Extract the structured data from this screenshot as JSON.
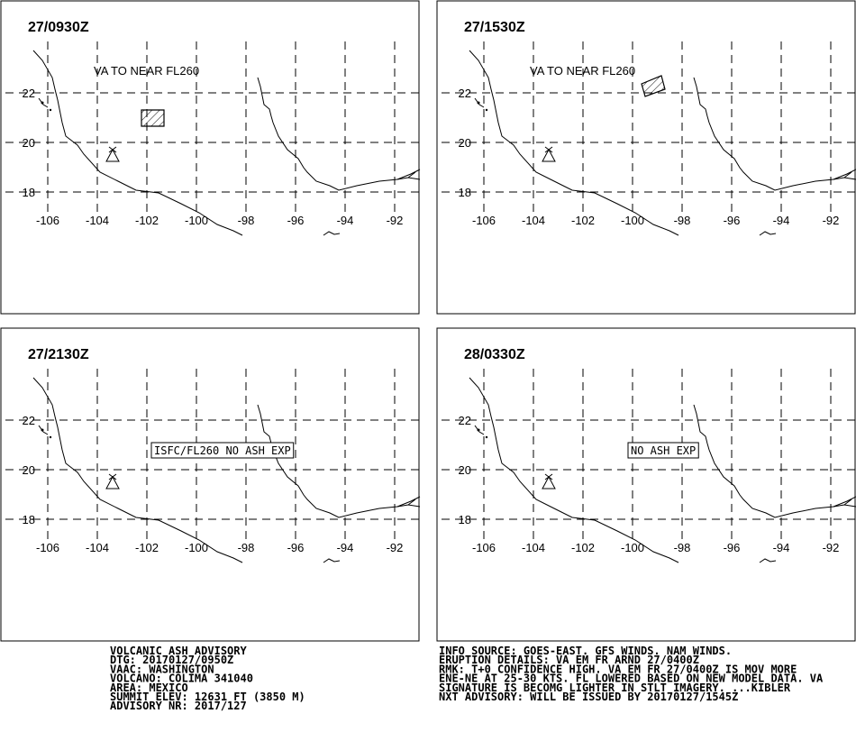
{
  "panels": [
    {
      "time": "27/0930Z",
      "label": "VA TO NEAR FL260"
    },
    {
      "time": "27/1530Z",
      "label": "VA TO NEAR FL260"
    },
    {
      "time": "27/2130Z",
      "label": "ISFC/FL260 NO ASH EXP"
    },
    {
      "time": "28/0330Z",
      "label": "NO ASH EXP"
    }
  ],
  "lat_labels": [
    22,
    20,
    18
  ],
  "lon_labels": [
    -106,
    -104,
    -102,
    -100,
    -98,
    -96,
    -94,
    -92
  ],
  "advisory_left": [
    "VOLCANIC ASH ADVISORY",
    "DTG: 20170127/0950Z",
    "VAAC: WASHINGTON",
    "VOLCANO: COLIMA 341040",
    "AREA: MEXICO",
    "SUMMIT ELEV: 12631 FT (3850 M)",
    "ADVISORY NR: 2017/127"
  ],
  "advisory_right": [
    "INFO SOURCE: GOES-EAST. GFS WINDS. NAM WINDS.",
    "ERUPTION DETAILS: VA EM FR ARND 27/0400Z",
    "RMK: T+0 CONFIDENCE HIGH. VA EM FR 27/0400Z IS MOV MORE",
    "ENE-NE AT 25-30 KTS. FL LOWERED BASED ON NEW MODEL DATA. VA",
    "SIGNATURE IS BECOMG LIGHTER IN STLT IMAGERY. ...KIBLER",
    "NXT ADVISORY: WILL BE ISSUED BY 20170127/1545Z"
  ]
}
